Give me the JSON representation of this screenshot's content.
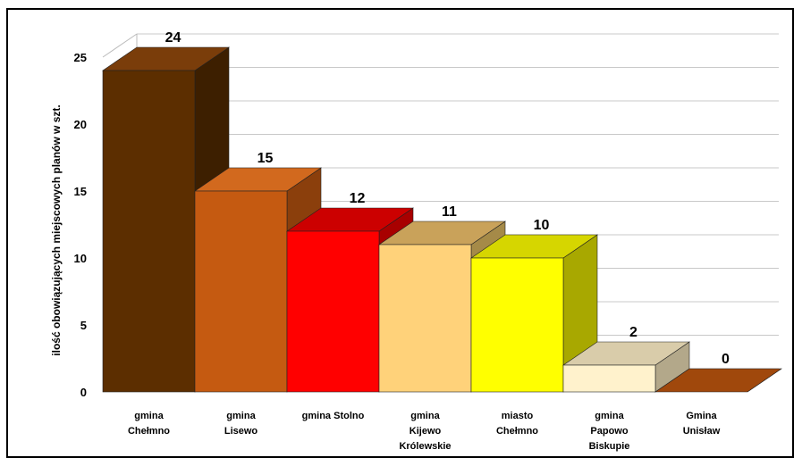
{
  "chart_data": {
    "type": "bar",
    "style": "3d",
    "ylabel": "ilość obowiązujących  miejscowych planów w szt.",
    "ylim": [
      0,
      25
    ],
    "yticks": [
      0,
      5,
      10,
      15,
      20,
      25
    ],
    "grid": true,
    "categories": [
      [
        "gmina",
        "Chełmno"
      ],
      [
        "gmina",
        "Lisewo"
      ],
      [
        "gmina Stolno"
      ],
      [
        "gmina",
        "Kijewo",
        "Królewskie"
      ],
      [
        "miasto",
        "Chełmno"
      ],
      [
        "gmina",
        "Papowo",
        "Biskupie"
      ],
      [
        "Gmina",
        "Unisław"
      ]
    ],
    "values": [
      24,
      15,
      12,
      11,
      10,
      2,
      0
    ],
    "colors": [
      {
        "front": "#5c2e00",
        "top": "#7a3d0a",
        "side": "#3d1f00"
      },
      {
        "front": "#c55a11",
        "top": "#d2691e",
        "side": "#8b3f0c"
      },
      {
        "front": "#ff0000",
        "top": "#cc0000",
        "side": "#a80000"
      },
      {
        "front": "#ffd27a",
        "top": "#c9a25a",
        "side": "#a58a48"
      },
      {
        "front": "#ffff00",
        "top": "#d6d600",
        "side": "#a8a800"
      },
      {
        "front": "#fff2cc",
        "top": "#d9ccaa",
        "side": "#b3a88a"
      },
      {
        "front": "#c55a11",
        "top": "#a0480c",
        "side": "#7a360a"
      }
    ]
  }
}
